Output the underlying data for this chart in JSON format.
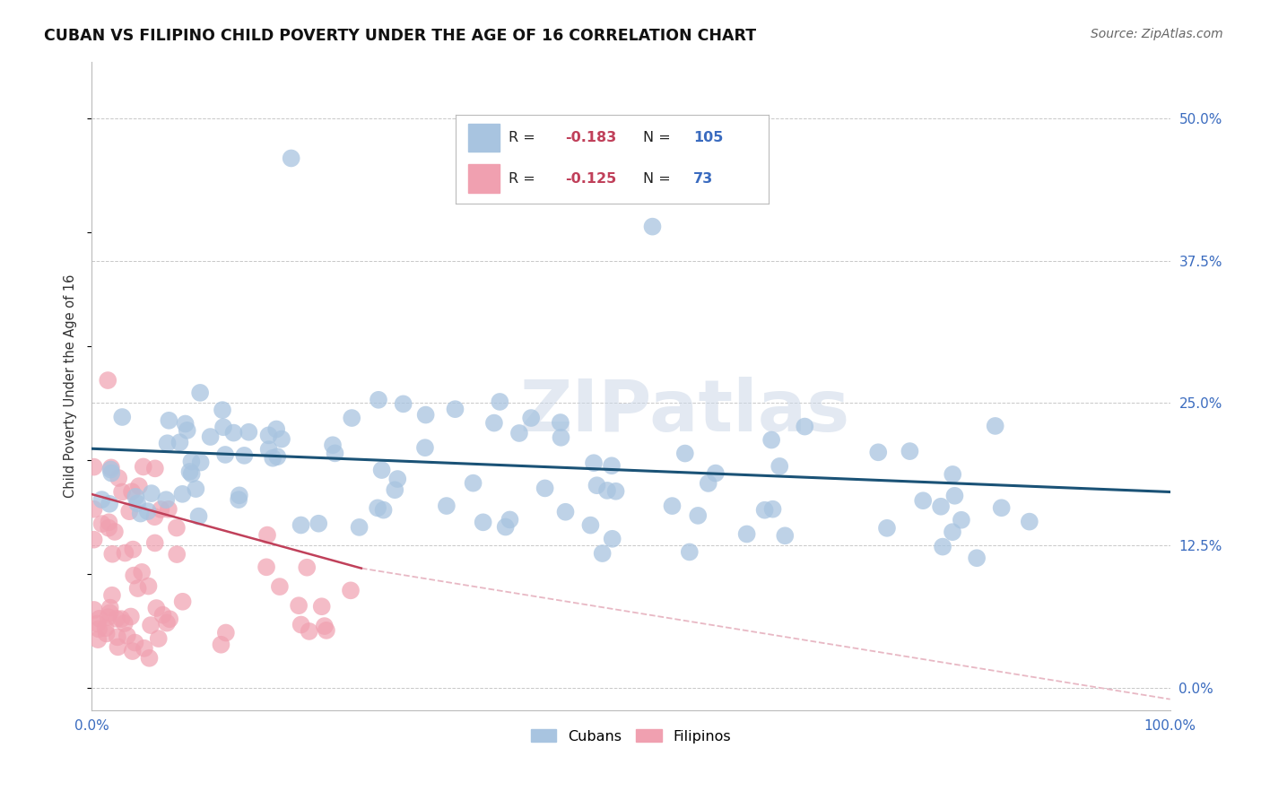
{
  "title": "CUBAN VS FILIPINO CHILD POVERTY UNDER THE AGE OF 16 CORRELATION CHART",
  "source": "Source: ZipAtlas.com",
  "ylabel": "Child Poverty Under the Age of 16",
  "ytick_values": [
    0.0,
    12.5,
    25.0,
    37.5,
    50.0
  ],
  "xlim": [
    0.0,
    100.0
  ],
  "ylim": [
    -2.0,
    55.0
  ],
  "background_color": "#ffffff",
  "watermark": "ZIPatlas",
  "cuban_R": -0.183,
  "cuban_N": 105,
  "filipino_R": -0.125,
  "filipino_N": 73,
  "cuban_color": "#a8c4e0",
  "cuban_line_color": "#1a5276",
  "filipino_color": "#f0a0b0",
  "filipino_line_color": "#c0405a",
  "filipino_line_dashed_color": "#e8b8c4",
  "cuban_line_x0": 0.0,
  "cuban_line_y0": 21.0,
  "cuban_line_x1": 100.0,
  "cuban_line_y1": 17.2,
  "filipino_line_x0": 0.0,
  "filipino_line_y0": 17.0,
  "filipino_line_x1": 25.0,
  "filipino_line_y1": 10.5,
  "filipino_dash_x0": 25.0,
  "filipino_dash_y0": 10.5,
  "filipino_dash_x1": 100.0,
  "filipino_dash_y1": -1.0
}
